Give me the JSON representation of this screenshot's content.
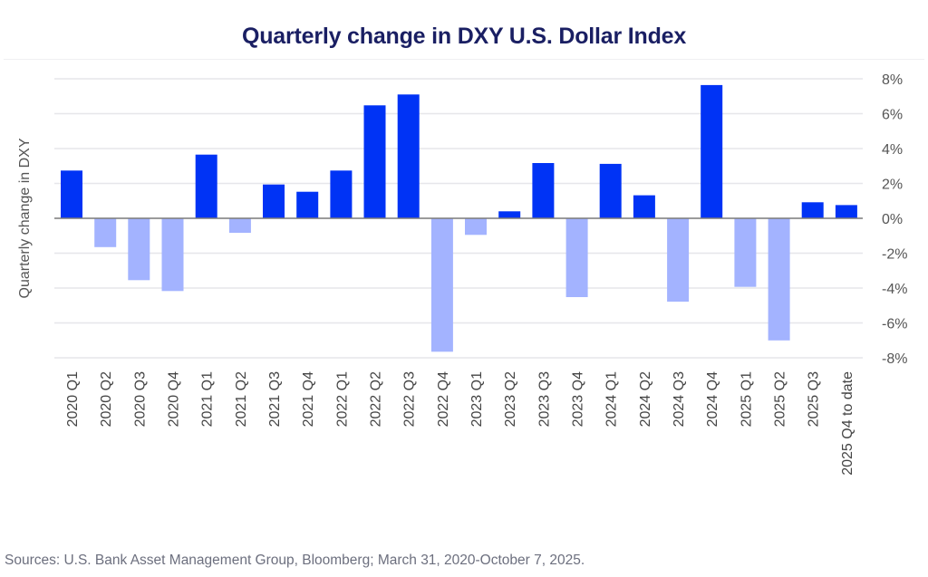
{
  "chart_data": {
    "type": "bar",
    "title": "Quarterly change in DXY U.S. Dollar Index",
    "xlabel": "",
    "ylabel": "Quarterly change in DXY",
    "ylim": [
      -8,
      8
    ],
    "yticks": [
      8,
      6,
      4,
      2,
      0,
      -2,
      -4,
      -6,
      -8
    ],
    "ytick_labels": [
      "8%",
      "6%",
      "4%",
      "2%",
      "0%",
      "-2%",
      "-4%",
      "-6%",
      "-8%"
    ],
    "y_axis_side": "right",
    "grid": true,
    "categories": [
      "2020 Q1",
      "2020 Q2",
      "2020 Q3",
      "2020 Q4",
      "2021 Q1",
      "2021 Q2",
      "2021 Q3",
      "2021 Q4",
      "2022 Q1",
      "2022 Q2",
      "2022 Q3",
      "2022 Q4",
      "2023 Q1",
      "2023 Q2",
      "2023 Q3",
      "2023 Q4",
      "2024 Q1",
      "2024 Q2",
      "2024 Q3",
      "2024 Q4",
      "2025 Q1",
      "2025 Q2",
      "2025 Q3",
      "2025 Q4 to date"
    ],
    "values": [
      2.74,
      -1.65,
      -3.55,
      -4.17,
      3.65,
      -0.83,
      1.94,
      1.52,
      2.74,
      6.48,
      7.1,
      -7.65,
      -0.95,
      0.4,
      3.17,
      -4.52,
      3.12,
      1.32,
      -4.78,
      7.64,
      -3.93,
      -7.0,
      0.92,
      0.76
    ],
    "colors": {
      "positive": "#0033f5",
      "negative": "#a3b3ff",
      "grid": "#e6e6ea",
      "zero_line": "#7a7a7a",
      "title": "#1a1f63",
      "tick_text": "#555555"
    }
  },
  "footer": {
    "source": "Sources: U.S. Bank Asset Management Group, Bloomberg; March 31, 2020-October 7, 2025."
  }
}
